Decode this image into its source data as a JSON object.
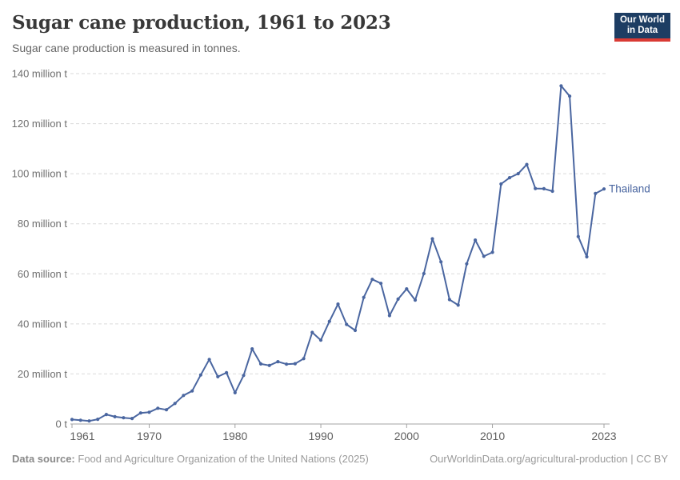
{
  "header": {
    "title": "Sugar cane production, 1961 to 2023",
    "subtitle": "Sugar cane production is measured in tonnes."
  },
  "logo": {
    "line1": "Our World",
    "line2": "in Data",
    "background_color": "#1d3d63",
    "bar_color": "#d93a34"
  },
  "chart_data": {
    "type": "line",
    "title": "Sugar cane production, 1961 to 2023",
    "unit": "tonnes",
    "xlabel": "",
    "ylabel": "",
    "xlim": [
      1961,
      2023
    ],
    "ylim": [
      0,
      140
    ],
    "grid": "horizontal-dashed",
    "legend": "end-of-line-label",
    "x_ticks": [
      1961,
      1970,
      1980,
      1990,
      2000,
      2010,
      2023
    ],
    "y_ticks": [
      {
        "value": 0,
        "label": "0 t"
      },
      {
        "value": 20,
        "label": "20 million t"
      },
      {
        "value": 40,
        "label": "40 million t"
      },
      {
        "value": 60,
        "label": "60 million t"
      },
      {
        "value": 80,
        "label": "80 million t"
      },
      {
        "value": 100,
        "label": "100 million t"
      },
      {
        "value": 120,
        "label": "120 million t"
      },
      {
        "value": 140,
        "label": "140 million t"
      }
    ],
    "value_unit_suffix": "million t",
    "series": [
      {
        "name": "Thailand",
        "color": "#4a66a0",
        "x": [
          1961,
          1962,
          1963,
          1964,
          1965,
          1966,
          1967,
          1968,
          1969,
          1970,
          1971,
          1972,
          1973,
          1974,
          1975,
          1976,
          1977,
          1978,
          1979,
          1980,
          1981,
          1982,
          1983,
          1984,
          1985,
          1986,
          1987,
          1988,
          1989,
          1990,
          1991,
          1992,
          1993,
          1994,
          1995,
          1996,
          1997,
          1998,
          1999,
          2000,
          2001,
          2002,
          2003,
          2004,
          2005,
          2006,
          2007,
          2008,
          2009,
          2010,
          2011,
          2012,
          2013,
          2014,
          2015,
          2016,
          2017,
          2018,
          2019,
          2020,
          2021,
          2022,
          2023
        ],
        "values": [
          1.8,
          1.5,
          1.2,
          1.9,
          3.8,
          2.9,
          2.5,
          2.2,
          4.4,
          4.7,
          6.3,
          5.7,
          8.2,
          11.4,
          13.2,
          19.6,
          25.8,
          18.9,
          20.5,
          12.5,
          19.4,
          30.0,
          24.0,
          23.4,
          24.9,
          23.9,
          24.1,
          26.1,
          36.6,
          33.5,
          41.0,
          47.9,
          39.8,
          37.4,
          50.6,
          57.8,
          56.2,
          43.3,
          49.9,
          54.0,
          49.5,
          60.1,
          74.0,
          64.8,
          49.7,
          47.5,
          64.0,
          73.5,
          67.0,
          68.6,
          95.9,
          98.4,
          100.0,
          103.7,
          94.1,
          94.0,
          93.0,
          135.1,
          131.0,
          74.9,
          66.8,
          92.1,
          93.9
        ]
      }
    ]
  },
  "footer": {
    "source_label": "Data source:",
    "source_text": "Food and Agriculture Organization of the United Nations (2025)",
    "credit": "OurWorldinData.org/agricultural-production | CC BY"
  },
  "colors": {
    "line": "#4a66a0",
    "grid": "#dadada",
    "axis": "#a3a3a3",
    "y_tick_text": "#6e6e6e",
    "x_tick_text": "#5f5f5f",
    "title_text": "#383838",
    "subtitle_text": "#666666",
    "footer_text": "#9a9a9a"
  }
}
